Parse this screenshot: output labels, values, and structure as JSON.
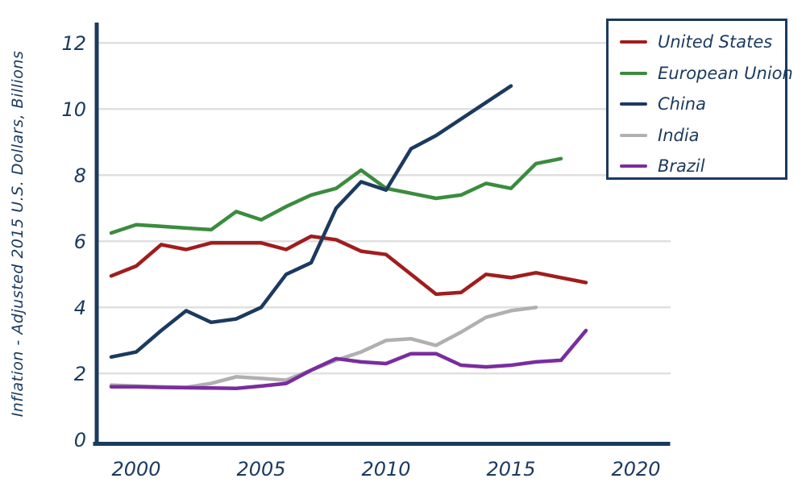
{
  "chart_data": {
    "type": "line",
    "title": "",
    "xlabel": "",
    "ylabel": "Inflation - Adjusted 2015 U.S. Dollars, Billions",
    "x": [
      1999,
      2000,
      2001,
      2002,
      2003,
      2004,
      2005,
      2006,
      2007,
      2008,
      2009,
      2010,
      2011,
      2012,
      2013,
      2014,
      2015,
      2016,
      2017,
      2018
    ],
    "series": [
      {
        "name": "United States",
        "color": "#A01D1D",
        "values": [
          4.95,
          5.25,
          5.9,
          5.75,
          5.95,
          5.95,
          5.95,
          5.75,
          6.15,
          6.05,
          5.7,
          5.6,
          5.0,
          4.4,
          4.45,
          5.0,
          4.9,
          5.05,
          4.9,
          4.75
        ]
      },
      {
        "name": "European Union",
        "color": "#3B8C3E",
        "values": [
          6.25,
          6.5,
          6.45,
          6.4,
          6.35,
          6.9,
          6.65,
          7.05,
          7.4,
          7.6,
          8.15,
          7.6,
          7.45,
          7.3,
          7.4,
          7.75,
          7.6,
          8.35,
          8.5,
          null
        ]
      },
      {
        "name": "China",
        "color": "#1B3A5F",
        "values": [
          2.5,
          2.65,
          3.3,
          3.9,
          3.55,
          3.65,
          4.0,
          5.0,
          5.35,
          7.0,
          7.8,
          7.55,
          8.8,
          9.2,
          9.7,
          10.2,
          10.7,
          null,
          null,
          null
        ]
      },
      {
        "name": "India",
        "color": "#B0B0B0",
        "values": [
          1.65,
          1.62,
          1.6,
          1.58,
          1.7,
          1.9,
          1.85,
          1.8,
          2.1,
          2.4,
          2.65,
          3.0,
          3.05,
          2.85,
          3.25,
          3.7,
          3.9,
          4.0,
          null,
          null
        ]
      },
      {
        "name": "Brazil",
        "color": "#7A2D9E",
        "values": [
          1.6,
          1.6,
          1.58,
          1.57,
          1.56,
          1.55,
          1.62,
          1.7,
          2.1,
          2.45,
          2.35,
          2.3,
          2.6,
          2.6,
          2.25,
          2.2,
          2.25,
          2.35,
          2.4,
          3.3
        ]
      }
    ],
    "x_ticks": [
      2000,
      2005,
      2010,
      2015,
      2020
    ],
    "y_ticks": [
      0,
      2,
      4,
      6,
      8,
      10,
      12
    ],
    "xlim": [
      1998.4,
      2021
    ],
    "ylim": [
      0,
      12.6
    ],
    "grid": "horizontal-only",
    "legend_position": "top-right",
    "colors": {
      "axis": "#1B3A5E",
      "text": "#1B3A5E",
      "gridline": "#E0E0E0",
      "background": "#FFFFFF"
    }
  }
}
